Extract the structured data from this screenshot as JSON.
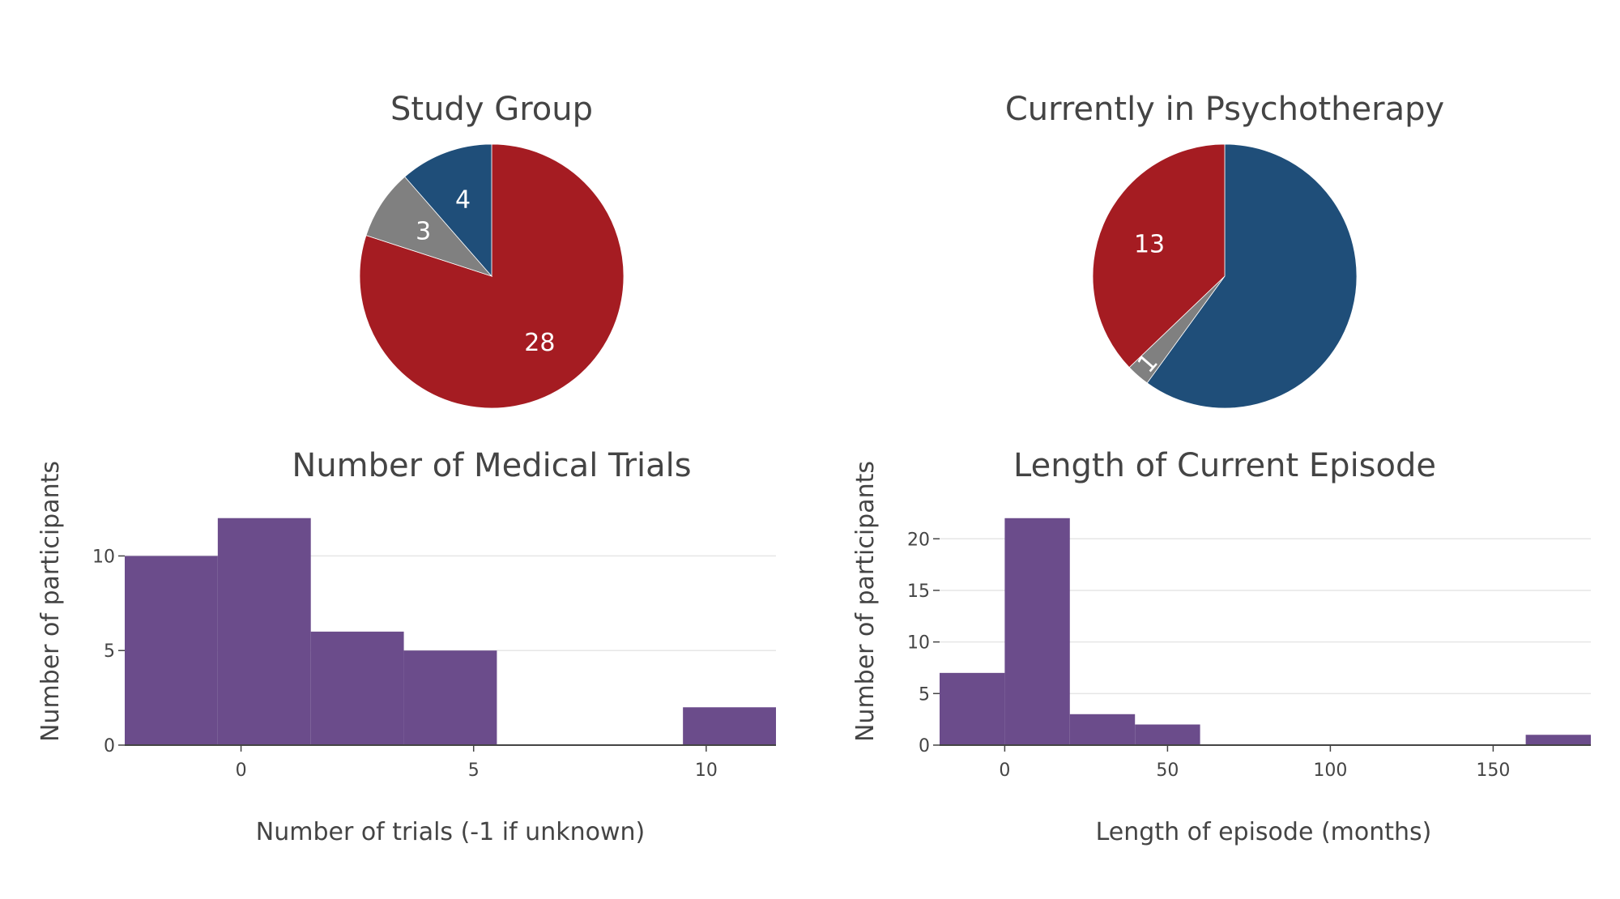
{
  "chart_data": [
    {
      "type": "pie",
      "title": "Study Group",
      "slices": [
        {
          "value": 28,
          "label": "28",
          "color": "#a51c22"
        },
        {
          "value": 3,
          "label": "3",
          "color": "#808080"
        },
        {
          "value": 4,
          "label": "4",
          "color": "#1f4e79"
        }
      ]
    },
    {
      "type": "pie",
      "title": "Currently in Psychotherapy",
      "slices": [
        {
          "value": 21,
          "label": "",
          "color": "#1f4e79"
        },
        {
          "value": 1,
          "label": "1",
          "color": "#808080"
        },
        {
          "value": 13,
          "label": "13",
          "color": "#a51c22"
        }
      ]
    },
    {
      "type": "bar",
      "title": "Number of Medical Trials",
      "xlabel": "Number of trials (-1 if unknown)",
      "ylabel": "Number of participants",
      "bins": [
        {
          "x0": -2.5,
          "x1": -0.5,
          "count": 10
        },
        {
          "x0": -0.5,
          "x1": 1.5,
          "count": 12
        },
        {
          "x0": 1.5,
          "x1": 3.5,
          "count": 6
        },
        {
          "x0": 3.5,
          "x1": 5.5,
          "count": 5
        },
        {
          "x0": 5.5,
          "x1": 7.5,
          "count": 0
        },
        {
          "x0": 7.5,
          "x1": 9.5,
          "count": 0
        },
        {
          "x0": 9.5,
          "x1": 11.5,
          "count": 2
        }
      ],
      "xlim": [
        -2.5,
        11.5
      ],
      "ylim": [
        0,
        12.63
      ],
      "xticks": [
        0,
        5,
        10
      ],
      "yticks": [
        0,
        5,
        10
      ],
      "color": "#6b4c8b",
      "grid": true
    },
    {
      "type": "bar",
      "title": "Length of Current Episode",
      "xlabel": "Length of episode (months)",
      "ylabel": "Number of participants",
      "bins": [
        {
          "x0": -20,
          "x1": 0,
          "count": 7
        },
        {
          "x0": 0,
          "x1": 20,
          "count": 22
        },
        {
          "x0": 20,
          "x1": 40,
          "count": 3
        },
        {
          "x0": 40,
          "x1": 60,
          "count": 2
        },
        {
          "x0": 60,
          "x1": 80,
          "count": 0
        },
        {
          "x0": 80,
          "x1": 100,
          "count": 0
        },
        {
          "x0": 100,
          "x1": 120,
          "count": 0
        },
        {
          "x0": 120,
          "x1": 140,
          "count": 0
        },
        {
          "x0": 140,
          "x1": 160,
          "count": 0
        },
        {
          "x0": 160,
          "x1": 180,
          "count": 1
        }
      ],
      "xlim": [
        -20,
        180
      ],
      "ylim": [
        0,
        23.16
      ],
      "xticks": [
        0,
        50,
        100,
        150
      ],
      "yticks": [
        0,
        5,
        10,
        15,
        20
      ],
      "color": "#6b4c8b",
      "grid": true
    }
  ]
}
